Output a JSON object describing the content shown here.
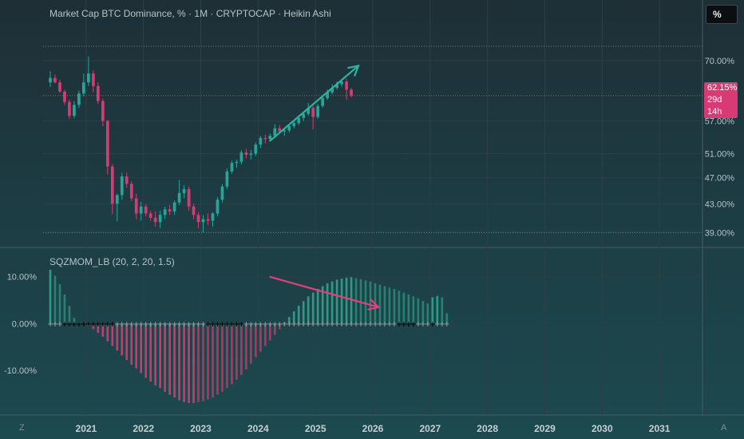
{
  "header": {
    "title": "Market Cap BTC Dominance, % · 1M · CRYPTOCAP · Heikin Ashi",
    "scale_button": "%"
  },
  "price_badge": {
    "value": "62.15%",
    "countdown": "29d 14h"
  },
  "indicator": {
    "title": "SQZMOM_LB (20, 2, 20, 1.5)"
  },
  "corners": {
    "left": "Z",
    "right": "A"
  },
  "colors": {
    "up": "#26a69a",
    "down": "#d83b73",
    "squeeze_on": "#000000",
    "squeeze_off": "#8a9ba0",
    "arrow_up": "#2bb5a0",
    "arrow_down": "#e0407a"
  },
  "chart_data": [
    {
      "type": "candlestick",
      "title": "Market Cap BTC Dominance, % · 1M · CRYPTOCAP · Heikin Ashi",
      "y_ticks": [
        "70.00%",
        "57.00%",
        "51.00%",
        "47.00%",
        "43.00%",
        "39.00%"
      ],
      "y_tick_values": [
        70,
        57,
        51,
        47,
        43,
        39
      ],
      "y_scale": "log",
      "ylim": [
        38.5,
        73.5
      ],
      "x_ticks": [
        "2021",
        "2022",
        "2023",
        "2024",
        "2025",
        "2026",
        "2027",
        "2028",
        "2029",
        "2030",
        "2031"
      ],
      "xlim": [
        2020.25,
        2031.75
      ],
      "last_value": 62.15,
      "candles": [
        {
          "t": 2020.375,
          "o": 65.0,
          "h": 67.5,
          "l": 64.0,
          "c": 66.0
        },
        {
          "t": 2020.458,
          "o": 66.0,
          "h": 66.8,
          "l": 64.8,
          "c": 65.0
        },
        {
          "t": 2020.542,
          "o": 65.0,
          "h": 65.6,
          "l": 62.8,
          "c": 63.0
        },
        {
          "t": 2020.625,
          "o": 63.0,
          "h": 63.4,
          "l": 60.2,
          "c": 60.8
        },
        {
          "t": 2020.708,
          "o": 60.8,
          "h": 61.3,
          "l": 57.4,
          "c": 58.0
        },
        {
          "t": 2020.792,
          "o": 58.0,
          "h": 61.0,
          "l": 57.5,
          "c": 60.2
        },
        {
          "t": 2020.875,
          "o": 60.2,
          "h": 63.2,
          "l": 59.6,
          "c": 62.6
        },
        {
          "t": 2020.958,
          "o": 62.6,
          "h": 67.0,
          "l": 62.0,
          "c": 65.0
        },
        {
          "t": 2021.042,
          "o": 65.0,
          "h": 71.0,
          "l": 64.2,
          "c": 67.0
        },
        {
          "t": 2021.125,
          "o": 67.0,
          "h": 67.7,
          "l": 62.8,
          "c": 64.2
        },
        {
          "t": 2021.208,
          "o": 64.2,
          "h": 65.0,
          "l": 60.4,
          "c": 61.0
        },
        {
          "t": 2021.292,
          "o": 61.0,
          "h": 61.5,
          "l": 56.0,
          "c": 57.0
        },
        {
          "t": 2021.375,
          "o": 57.0,
          "h": 57.2,
          "l": 47.5,
          "c": 48.8
        },
        {
          "t": 2021.458,
          "o": 48.8,
          "h": 49.2,
          "l": 41.5,
          "c": 43.0
        },
        {
          "t": 2021.542,
          "o": 43.0,
          "h": 44.5,
          "l": 40.5,
          "c": 44.3
        },
        {
          "t": 2021.625,
          "o": 44.3,
          "h": 47.8,
          "l": 43.6,
          "c": 47.2
        },
        {
          "t": 2021.708,
          "o": 47.2,
          "h": 47.8,
          "l": 45.4,
          "c": 46.0
        },
        {
          "t": 2021.792,
          "o": 46.0,
          "h": 46.4,
          "l": 43.4,
          "c": 43.8
        },
        {
          "t": 2021.875,
          "o": 43.8,
          "h": 44.5,
          "l": 40.8,
          "c": 41.6
        },
        {
          "t": 2021.958,
          "o": 41.6,
          "h": 43.3,
          "l": 40.6,
          "c": 42.6
        },
        {
          "t": 2022.042,
          "o": 42.6,
          "h": 43.0,
          "l": 41.2,
          "c": 41.6
        },
        {
          "t": 2022.125,
          "o": 41.6,
          "h": 42.0,
          "l": 40.6,
          "c": 41.0
        },
        {
          "t": 2022.208,
          "o": 41.0,
          "h": 41.9,
          "l": 39.8,
          "c": 40.4
        },
        {
          "t": 2022.292,
          "o": 40.4,
          "h": 42.0,
          "l": 39.6,
          "c": 41.4
        },
        {
          "t": 2022.375,
          "o": 41.4,
          "h": 42.6,
          "l": 40.8,
          "c": 42.2
        },
        {
          "t": 2022.458,
          "o": 42.2,
          "h": 42.8,
          "l": 41.4,
          "c": 41.9
        },
        {
          "t": 2022.542,
          "o": 41.9,
          "h": 43.5,
          "l": 41.4,
          "c": 43.2
        },
        {
          "t": 2022.625,
          "o": 43.2,
          "h": 46.6,
          "l": 42.8,
          "c": 44.6
        },
        {
          "t": 2022.708,
          "o": 44.6,
          "h": 45.8,
          "l": 43.8,
          "c": 45.2
        },
        {
          "t": 2022.792,
          "o": 45.2,
          "h": 45.6,
          "l": 42.0,
          "c": 42.6
        },
        {
          "t": 2022.875,
          "o": 42.6,
          "h": 43.0,
          "l": 40.8,
          "c": 41.4
        },
        {
          "t": 2022.958,
          "o": 41.4,
          "h": 41.8,
          "l": 39.6,
          "c": 40.4
        },
        {
          "t": 2023.042,
          "o": 40.4,
          "h": 41.4,
          "l": 39.0,
          "c": 40.8
        },
        {
          "t": 2023.125,
          "o": 40.8,
          "h": 41.6,
          "l": 40.0,
          "c": 40.6
        },
        {
          "t": 2023.208,
          "o": 40.6,
          "h": 41.8,
          "l": 39.8,
          "c": 41.6
        },
        {
          "t": 2023.292,
          "o": 41.6,
          "h": 44.0,
          "l": 41.2,
          "c": 43.6
        },
        {
          "t": 2023.375,
          "o": 43.6,
          "h": 46.0,
          "l": 43.2,
          "c": 45.6
        },
        {
          "t": 2023.458,
          "o": 45.6,
          "h": 48.5,
          "l": 45.2,
          "c": 48.0
        },
        {
          "t": 2023.542,
          "o": 48.0,
          "h": 49.8,
          "l": 47.6,
          "c": 49.4
        },
        {
          "t": 2023.625,
          "o": 49.4,
          "h": 50.0,
          "l": 48.6,
          "c": 49.6
        },
        {
          "t": 2023.708,
          "o": 49.6,
          "h": 51.6,
          "l": 49.2,
          "c": 51.2
        },
        {
          "t": 2023.792,
          "o": 51.2,
          "h": 51.8,
          "l": 50.2,
          "c": 50.8
        },
        {
          "t": 2023.875,
          "o": 50.8,
          "h": 51.6,
          "l": 50.0,
          "c": 51.0
        },
        {
          "t": 2023.958,
          "o": 51.0,
          "h": 53.0,
          "l": 50.6,
          "c": 52.6
        },
        {
          "t": 2024.042,
          "o": 52.6,
          "h": 54.2,
          "l": 52.0,
          "c": 53.8
        },
        {
          "t": 2024.125,
          "o": 53.8,
          "h": 54.4,
          "l": 52.8,
          "c": 53.6
        },
        {
          "t": 2024.208,
          "o": 53.6,
          "h": 54.6,
          "l": 53.2,
          "c": 54.2
        },
        {
          "t": 2024.292,
          "o": 54.2,
          "h": 56.4,
          "l": 53.8,
          "c": 55.6
        },
        {
          "t": 2024.375,
          "o": 55.6,
          "h": 56.2,
          "l": 54.6,
          "c": 55.0
        },
        {
          "t": 2024.458,
          "o": 55.0,
          "h": 55.6,
          "l": 54.2,
          "c": 55.2
        },
        {
          "t": 2024.542,
          "o": 55.2,
          "h": 56.4,
          "l": 54.8,
          "c": 56.0
        },
        {
          "t": 2024.625,
          "o": 56.0,
          "h": 57.0,
          "l": 55.6,
          "c": 56.6
        },
        {
          "t": 2024.708,
          "o": 56.6,
          "h": 58.0,
          "l": 56.2,
          "c": 57.6
        },
        {
          "t": 2024.792,
          "o": 57.6,
          "h": 58.8,
          "l": 57.0,
          "c": 58.4
        },
        {
          "t": 2024.875,
          "o": 58.4,
          "h": 60.6,
          "l": 58.0,
          "c": 59.6
        },
        {
          "t": 2024.958,
          "o": 59.6,
          "h": 60.0,
          "l": 55.4,
          "c": 57.8
        },
        {
          "t": 2025.042,
          "o": 57.8,
          "h": 60.4,
          "l": 57.4,
          "c": 60.0
        },
        {
          "t": 2025.125,
          "o": 60.0,
          "h": 62.0,
          "l": 59.6,
          "c": 61.6
        },
        {
          "t": 2025.208,
          "o": 61.6,
          "h": 63.4,
          "l": 61.2,
          "c": 62.8
        },
        {
          "t": 2025.292,
          "o": 62.8,
          "h": 64.6,
          "l": 62.4,
          "c": 63.8
        },
        {
          "t": 2025.375,
          "o": 63.8,
          "h": 65.2,
          "l": 63.4,
          "c": 64.6
        },
        {
          "t": 2025.458,
          "o": 64.6,
          "h": 65.8,
          "l": 64.0,
          "c": 65.2
        },
        {
          "t": 2025.542,
          "o": 65.2,
          "h": 65.8,
          "l": 61.2,
          "c": 63.4
        },
        {
          "t": 2025.625,
          "o": 63.4,
          "h": 63.8,
          "l": 61.8,
          "c": 62.15
        }
      ],
      "arrow": {
        "from": [
          2024.2,
          53.2
        ],
        "to": [
          2025.75,
          68.8
        ]
      }
    },
    {
      "type": "bar",
      "title": "SQZMOM_LB (20, 2, 20, 1.5)",
      "y_ticks": [
        "10.00%",
        "0.00%",
        "-10.00%"
      ],
      "y_tick_values": [
        10,
        0,
        -10
      ],
      "ylim": [
        -17,
        12
      ],
      "xlim": [
        2020.25,
        2031.75
      ],
      "x0": 2020.375,
      "step": 0.08333,
      "values": [
        11.5,
        10.2,
        8.4,
        6.2,
        3.8,
        1.2,
        0.3,
        -0.2,
        -0.6,
        -1.2,
        -2.0,
        -2.8,
        -3.8,
        -4.8,
        -5.8,
        -6.8,
        -7.8,
        -8.8,
        -9.6,
        -10.6,
        -11.6,
        -12.4,
        -13.2,
        -13.8,
        -14.6,
        -15.2,
        -15.8,
        -16.4,
        -16.8,
        -17.0,
        -17.0,
        -16.8,
        -16.6,
        -16.2,
        -15.8,
        -15.2,
        -14.6,
        -13.8,
        -13.0,
        -12.0,
        -11.0,
        -9.8,
        -8.6,
        -7.2,
        -6.0,
        -4.8,
        -3.6,
        -2.4,
        -1.2,
        0.3,
        1.4,
        2.6,
        3.8,
        4.8,
        5.8,
        6.6,
        7.4,
        8.0,
        8.6,
        9.0,
        9.4,
        9.6,
        9.8,
        9.9,
        9.7,
        9.5,
        9.2,
        9.0,
        8.6,
        8.3,
        8.0,
        7.7,
        7.4,
        7.0,
        6.6,
        6.2,
        5.8,
        5.4,
        4.8,
        4.3,
        5.6,
        5.9,
        5.6,
        2.2
      ],
      "squeeze_on": [
        0,
        0,
        0,
        1,
        1,
        1,
        1,
        1,
        1,
        1,
        1,
        1,
        1,
        1,
        0,
        0,
        0,
        0,
        0,
        0,
        0,
        0,
        0,
        0,
        0,
        0,
        0,
        0,
        0,
        0,
        0,
        0,
        0,
        1,
        1,
        1,
        1,
        1,
        1,
        1,
        1,
        0,
        0,
        0,
        0,
        0,
        0,
        0,
        0,
        0,
        0,
        0,
        0,
        0,
        0,
        0,
        0,
        0,
        0,
        0,
        0,
        0,
        0,
        0,
        0,
        0,
        0,
        0,
        0,
        0,
        0,
        0,
        0,
        1,
        1,
        1,
        1,
        0,
        0,
        0,
        1,
        0,
        0,
        0
      ],
      "arrow": {
        "from": [
          2024.2,
          10.0
        ],
        "to": [
          2026.1,
          3.5
        ]
      }
    }
  ]
}
